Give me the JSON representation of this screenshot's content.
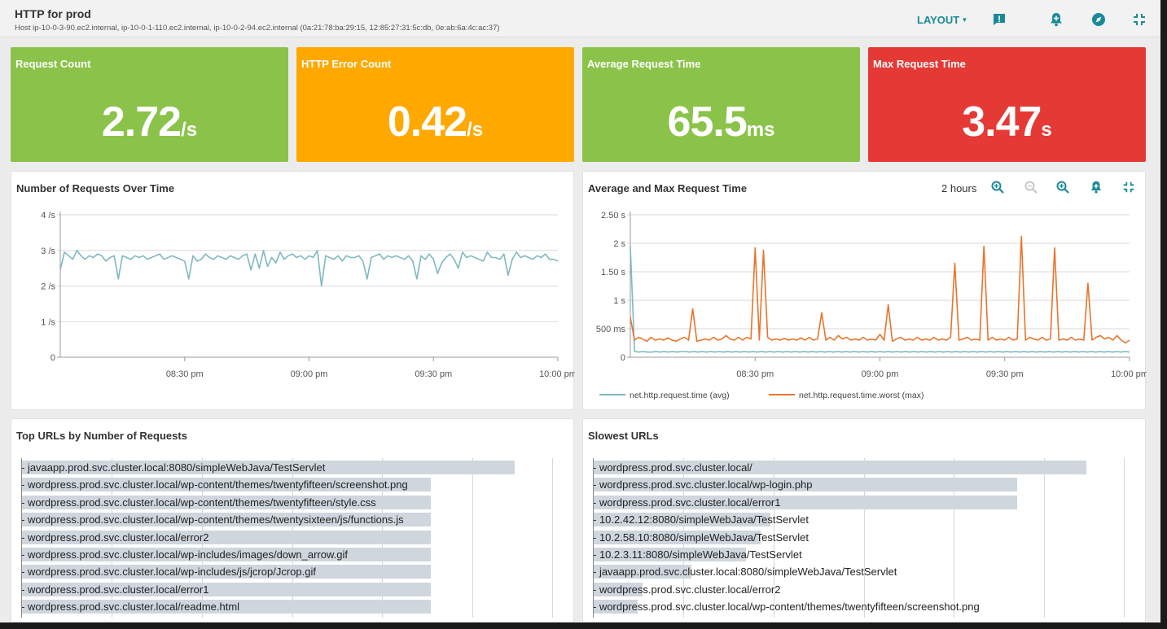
{
  "header": {
    "title": "HTTP for prod",
    "subtitle": "Host ip-10-0-3-90.ec2.internal, ip-10-0-1-110.ec2.internal, ip-10-0-2-94.ec2.internal (0a:21:78:ba:29:15, 12:85:27:31:5c:db, 0e:ab:6a:4c:ac:37)",
    "layout_label": "LAYOUT",
    "icons": [
      "comment-icon",
      "add-alert-icon",
      "explore-icon",
      "collapse-icon"
    ]
  },
  "tiles": [
    {
      "label": "Request Count",
      "value": "2.72",
      "unit": "/s",
      "color": "#8bc34a"
    },
    {
      "label": "HTTP Error Count",
      "value": "0.42",
      "unit": "/s",
      "color": "#ffa900"
    },
    {
      "label": "Average Request Time",
      "value": "65.5",
      "unit": "ms",
      "color": "#8bc34a"
    },
    {
      "label": "Max Request Time",
      "value": "3.47",
      "unit": "s",
      "color": "#e53935"
    }
  ],
  "requests_panel": {
    "title": "Number of Requests Over Time"
  },
  "time_panel": {
    "title": "Average and Max Request Time",
    "range_label": "2 hours",
    "icons": [
      "zoom-in-icon",
      "zoom-out-icon",
      "zoom-search-icon",
      "add-alert-icon",
      "collapse-icon"
    ]
  },
  "top_urls": {
    "title": "Top URLs by Number of Requests",
    "rows": [
      {
        "label": "javaapp.prod.svc.cluster.local:8080/simpleWebJava/TestServlet",
        "value": 1.0
      },
      {
        "label": "wordpress.prod.svc.cluster.local/wp-content/themes/twentyfifteen/screenshot.png",
        "value": 0.83
      },
      {
        "label": "wordpress.prod.svc.cluster.local/wp-content/themes/twentyfifteen/style.css",
        "value": 0.83
      },
      {
        "label": "wordpress.prod.svc.cluster.local/wp-content/themes/twentysixteen/js/functions.js",
        "value": 0.83
      },
      {
        "label": "wordpress.prod.svc.cluster.local/error2",
        "value": 0.83
      },
      {
        "label": "wordpress.prod.svc.cluster.local/wp-includes/images/down_arrow.gif",
        "value": 0.83
      },
      {
        "label": "wordpress.prod.svc.cluster.local/wp-includes/js/jcrop/Jcrop.gif",
        "value": 0.83
      },
      {
        "label": "wordpress.prod.svc.cluster.local/error1",
        "value": 0.83
      },
      {
        "label": "wordpress.prod.svc.cluster.local/readme.html",
        "value": 0.83
      }
    ]
  },
  "slow_urls": {
    "title": "Slowest URLs",
    "rows": [
      {
        "label": "wordpress.prod.svc.cluster.local/",
        "value": 1.0
      },
      {
        "label": "wordpress.prod.svc.cluster.local/wp-login.php",
        "value": 0.86
      },
      {
        "label": "wordpress.prod.svc.cluster.local/error1",
        "value": 0.86
      },
      {
        "label": "10.2.42.12:8080/simpleWebJava/TestServlet",
        "value": 0.36
      },
      {
        "label": "10.2.58.10:8080/simpleWebJava/TestServlet",
        "value": 0.34
      },
      {
        "label": "10.2.3.11:8080/simpleWebJava/TestServlet",
        "value": 0.31
      },
      {
        "label": "javaapp.prod.svc.cluster.local:8080/simpleWebJava/TestServlet",
        "value": 0.2
      },
      {
        "label": "wordpress.prod.svc.cluster.local/error2",
        "value": 0.1
      },
      {
        "label": "wordpress.prod.svc.cluster.local/wp-content/themes/twentyfifteen/screenshot.png",
        "value": 0.09
      }
    ]
  },
  "chart_data": [
    {
      "type": "line",
      "title": "Number of Requests Over Time",
      "xlabel": "",
      "ylabel": "",
      "x_ticks": [
        "08:30 pm",
        "09:00 pm",
        "09:30 pm",
        "10:00 pm"
      ],
      "y_ticks": [
        "0",
        "1 /s",
        "2 /s",
        "3 /s",
        "4 /s"
      ],
      "ylim": [
        0,
        4
      ],
      "grid": true,
      "series": [
        {
          "color": "#7fb8c0",
          "values": [
            2.45,
            2.95,
            2.85,
            2.75,
            3.0,
            2.85,
            2.75,
            2.85,
            2.8,
            2.9,
            2.85,
            2.7,
            2.8,
            2.85,
            2.2,
            2.85,
            2.8,
            2.75,
            2.85,
            2.8,
            2.85,
            2.75,
            2.8,
            2.85,
            2.9,
            2.75,
            2.8,
            2.85,
            2.8,
            2.75,
            2.7,
            2.2,
            2.85,
            2.7,
            2.75,
            2.9,
            2.8,
            2.75,
            2.85,
            2.8,
            2.75,
            2.85,
            2.8,
            2.75,
            2.85,
            2.9,
            2.45,
            2.9,
            2.5,
            3.0,
            2.55,
            2.8,
            2.65,
            2.95,
            2.75,
            2.85,
            2.9,
            2.8,
            2.85,
            2.75,
            2.85,
            2.8,
            3.0,
            2.0,
            2.85,
            2.8,
            2.75,
            2.85,
            2.7,
            2.85,
            2.8,
            2.8,
            2.85,
            2.7,
            2.2,
            2.8,
            2.85,
            2.9,
            2.75,
            2.85,
            2.8,
            2.85,
            2.8,
            2.75,
            2.85,
            2.7,
            2.2,
            2.85,
            2.75,
            2.9,
            2.75,
            2.35,
            2.65,
            2.8,
            2.9,
            2.75,
            2.5,
            2.95,
            2.8,
            2.85,
            2.8,
            2.75,
            2.7,
            2.95,
            2.8,
            2.8,
            2.75,
            2.9,
            2.3,
            2.75,
            2.95,
            2.8,
            2.85,
            2.8,
            2.75,
            2.85,
            2.8,
            2.9,
            2.75,
            2.75,
            2.7
          ]
        }
      ]
    },
    {
      "type": "line",
      "title": "Average and Max Request Time",
      "xlabel": "",
      "ylabel": "",
      "x_ticks": [
        "08:30 pm",
        "09:00 pm",
        "09:30 pm",
        "10:00 pm"
      ],
      "y_ticks": [
        "0",
        "500 ms",
        "1 s",
        "1.50 s",
        "2 s",
        "2.50 s"
      ],
      "ylim": [
        0,
        2.5
      ],
      "grid": true,
      "legend": "bottom",
      "series": [
        {
          "name": "net.http.request.time (avg)",
          "color": "#7fb8c0",
          "values": [
            1.95,
            0.1,
            0.09,
            0.1,
            0.09,
            0.09,
            0.1,
            0.09,
            0.1,
            0.09,
            0.1,
            0.09,
            0.1,
            0.1,
            0.09,
            0.1,
            0.09,
            0.1,
            0.09,
            0.1,
            0.09,
            0.1,
            0.09,
            0.1,
            0.09,
            0.1,
            0.09,
            0.1,
            0.09,
            0.1,
            0.09,
            0.1,
            0.09,
            0.1,
            0.09,
            0.1,
            0.09,
            0.1,
            0.09,
            0.1,
            0.09,
            0.1,
            0.09,
            0.1,
            0.09,
            0.1,
            0.09,
            0.1,
            0.09,
            0.1,
            0.09,
            0.1,
            0.09,
            0.1,
            0.09,
            0.1,
            0.09,
            0.1,
            0.09,
            0.1,
            0.09,
            0.1,
            0.09,
            0.1,
            0.09,
            0.1,
            0.09,
            0.1,
            0.09,
            0.1,
            0.09,
            0.1,
            0.09,
            0.1,
            0.09,
            0.1,
            0.09,
            0.1,
            0.09,
            0.1,
            0.09,
            0.1,
            0.09,
            0.1,
            0.09,
            0.1,
            0.09,
            0.1,
            0.09,
            0.1,
            0.09,
            0.1,
            0.09,
            0.1,
            0.09,
            0.1,
            0.09,
            0.1,
            0.09,
            0.1,
            0.09,
            0.1,
            0.09,
            0.1,
            0.09,
            0.1,
            0.09,
            0.1,
            0.09,
            0.1,
            0.09,
            0.1,
            0.09,
            0.1,
            0.09,
            0.1,
            0.09,
            0.1,
            0.09
          ]
        },
        {
          "name": "net.http.request.time.worst (max)",
          "color": "#e8742c",
          "values": [
            0.7,
            0.3,
            0.35,
            0.32,
            0.28,
            0.35,
            0.3,
            0.32,
            0.3,
            0.34,
            0.3,
            0.28,
            0.32,
            0.35,
            0.3,
            0.85,
            0.28,
            0.3,
            0.32,
            0.3,
            0.35,
            0.3,
            0.32,
            0.38,
            0.32,
            0.3,
            0.35,
            0.3,
            0.35,
            0.32,
            1.92,
            0.3,
            1.88,
            0.35,
            0.3,
            0.32,
            0.3,
            0.33,
            0.3,
            0.32,
            0.3,
            0.34,
            0.3,
            0.35,
            0.3,
            0.32,
            0.78,
            0.3,
            0.35,
            0.3,
            0.38,
            0.32,
            0.35,
            0.3,
            0.32,
            0.3,
            0.35,
            0.3,
            0.32,
            0.3,
            0.4,
            0.3,
            0.92,
            0.28,
            0.32,
            0.35,
            0.3,
            0.32,
            0.3,
            0.35,
            0.3,
            0.32,
            0.3,
            0.35,
            0.3,
            0.32,
            0.3,
            0.35,
            1.65,
            0.3,
            0.32,
            0.35,
            0.3,
            0.32,
            0.3,
            1.95,
            0.3,
            0.35,
            0.3,
            0.32,
            0.3,
            0.35,
            0.3,
            0.32,
            2.12,
            0.3,
            0.35,
            0.32,
            0.3,
            0.35,
            0.3,
            0.32,
            1.92,
            0.3,
            0.32,
            0.3,
            0.35,
            0.3,
            0.32,
            0.3,
            1.3,
            0.3,
            0.35,
            0.38,
            0.32,
            0.35,
            0.3,
            0.38,
            0.3,
            0.25,
            0.3
          ]
        }
      ]
    },
    {
      "type": "bar",
      "title": "Top URLs by Number of Requests",
      "orientation": "horizontal",
      "categories": [
        "javaapp.prod.svc.cluster.local:8080/simpleWebJava/TestServlet",
        "wordpress.prod.svc.cluster.local/wp-content/themes/twentyfifteen/screenshot.png",
        "wordpress.prod.svc.cluster.local/wp-content/themes/twentyfifteen/style.css",
        "wordpress.prod.svc.cluster.local/wp-content/themes/twentysixteen/js/functions.js",
        "wordpress.prod.svc.cluster.local/error2",
        "wordpress.prod.svc.cluster.local/wp-includes/images/down_arrow.gif",
        "wordpress.prod.svc.cluster.local/wp-includes/js/jcrop/Jcrop.gif",
        "wordpress.prod.svc.cluster.local/error1",
        "wordpress.prod.svc.cluster.local/readme.html"
      ],
      "values": [
        1.0,
        0.83,
        0.83,
        0.83,
        0.83,
        0.83,
        0.83,
        0.83,
        0.83
      ]
    },
    {
      "type": "bar",
      "title": "Slowest URLs",
      "orientation": "horizontal",
      "categories": [
        "wordpress.prod.svc.cluster.local/",
        "wordpress.prod.svc.cluster.local/wp-login.php",
        "wordpress.prod.svc.cluster.local/error1",
        "10.2.42.12:8080/simpleWebJava/TestServlet",
        "10.2.58.10:8080/simpleWebJava/TestServlet",
        "10.2.3.11:8080/simpleWebJava/TestServlet",
        "javaapp.prod.svc.cluster.local:8080/simpleWebJava/TestServlet",
        "wordpress.prod.svc.cluster.local/error2",
        "wordpress.prod.svc.cluster.local/wp-content/themes/twentyfifteen/screenshot.png"
      ],
      "values": [
        1.0,
        0.86,
        0.86,
        0.36,
        0.34,
        0.31,
        0.2,
        0.1,
        0.09
      ]
    }
  ]
}
